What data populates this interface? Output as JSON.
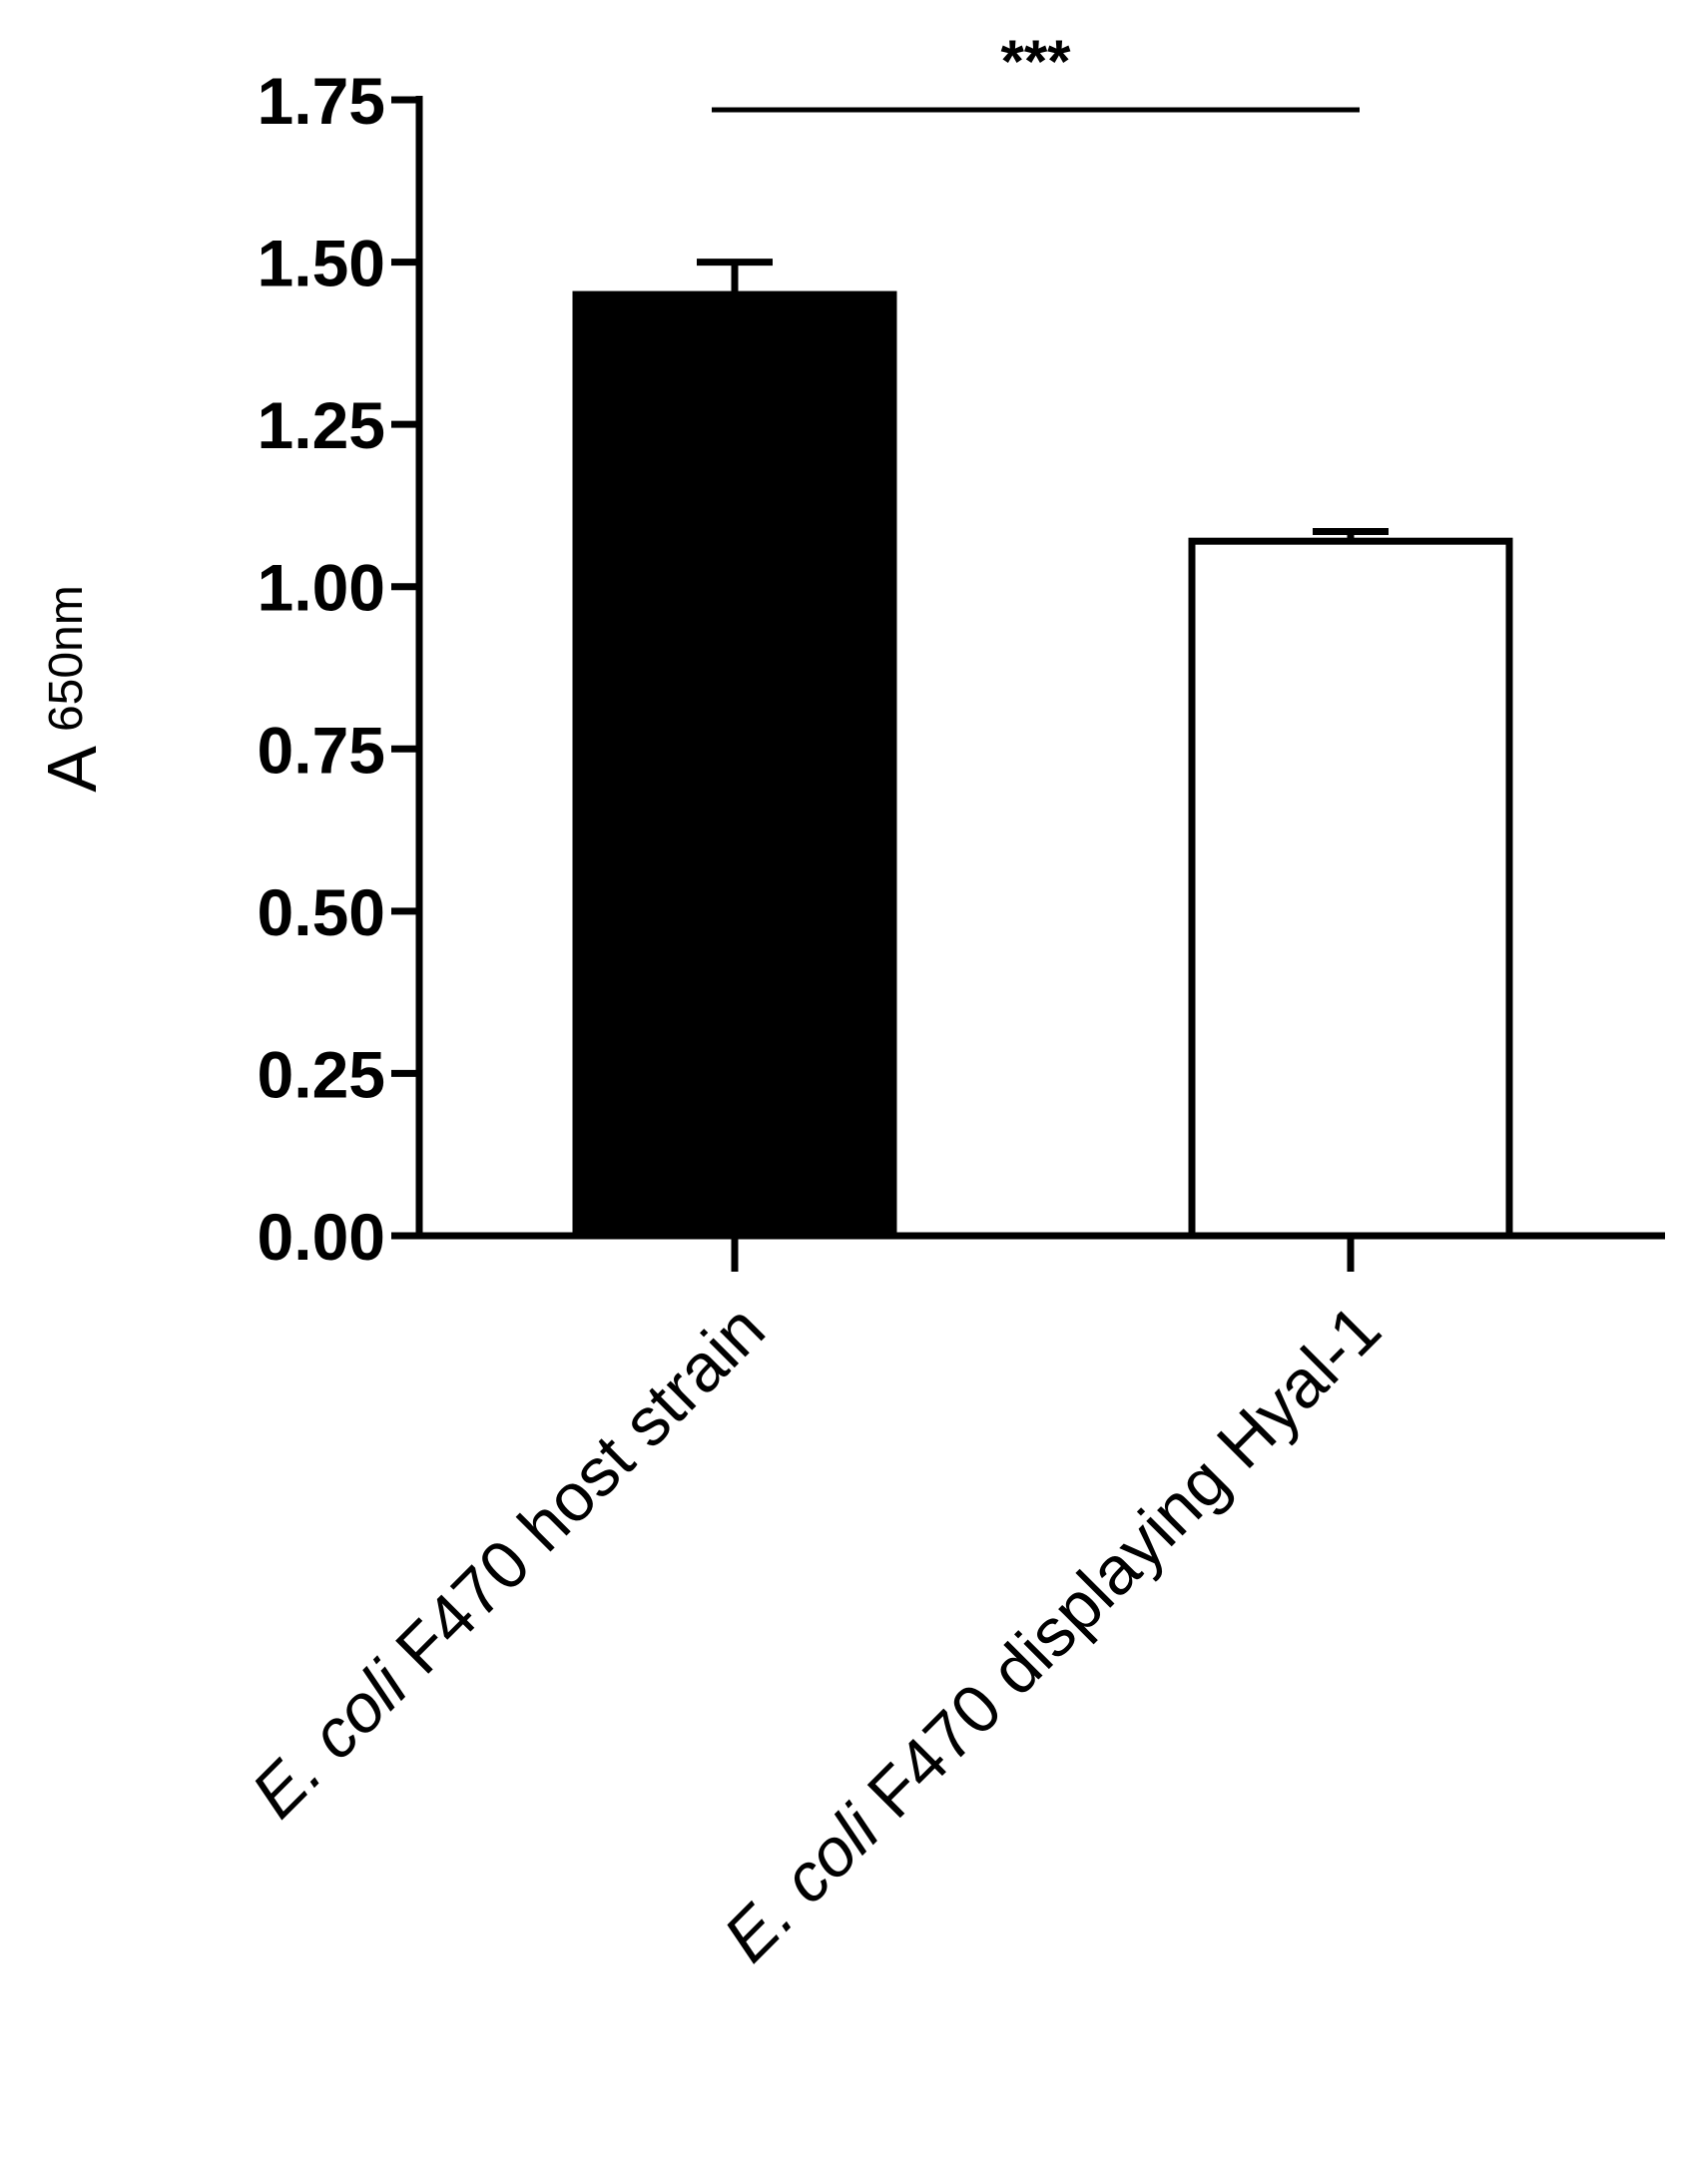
{
  "chart_data": {
    "type": "bar",
    "categories": [
      {
        "italic": "E. coli",
        "rest": " F470 host strain"
      },
      {
        "italic": "E. coli",
        "rest": " F470 displaying Hyal-1"
      }
    ],
    "values": [
      1.45,
      1.07
    ],
    "errors": [
      0.05,
      0.015
    ],
    "bar_colors": [
      "#000000",
      "#ffffff"
    ],
    "ylabel_main": "A",
    "ylabel_sub": "650nm",
    "ylim": [
      0,
      1.75
    ],
    "yticks": [
      "0.00",
      "0.25",
      "0.50",
      "0.75",
      "1.00",
      "1.25",
      "1.50",
      "1.75"
    ],
    "significance": {
      "label": "***",
      "between": [
        0,
        1
      ]
    },
    "grid": false
  }
}
